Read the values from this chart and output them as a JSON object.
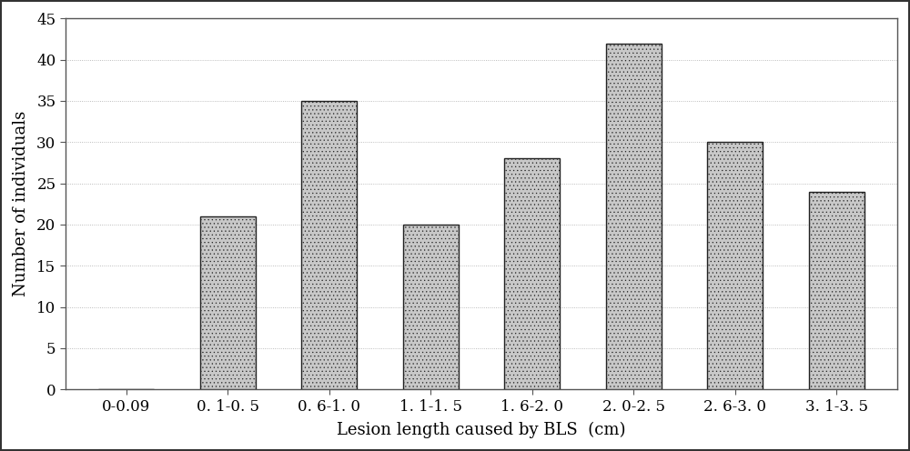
{
  "categories": [
    "0-0.09",
    "0. 1-0. 5",
    "0. 6-1. 0",
    "1. 1-1. 5",
    "1. 6-2. 0",
    "2. 0-2. 5",
    "2. 6-3. 0",
    "3. 1-3. 5"
  ],
  "values": [
    0,
    21,
    35,
    20,
    28,
    42,
    30,
    24
  ],
  "bar_facecolor": "#c8c8c8",
  "bar_edgecolor": "#222222",
  "bar_hatch_color": "#cc99cc",
  "xlabel": "Lesion length caused by BLS  (cm)",
  "ylabel": "Number of individuals",
  "ylim": [
    0,
    45
  ],
  "yticks": [
    0,
    5,
    10,
    15,
    20,
    25,
    30,
    35,
    40,
    45
  ],
  "background_color": "#ffffff",
  "outer_border_color": "#555555",
  "tick_fontsize": 12,
  "xlabel_fontsize": 13,
  "ylabel_fontsize": 13,
  "bar_width": 0.55,
  "figure_border_color": "#333333"
}
